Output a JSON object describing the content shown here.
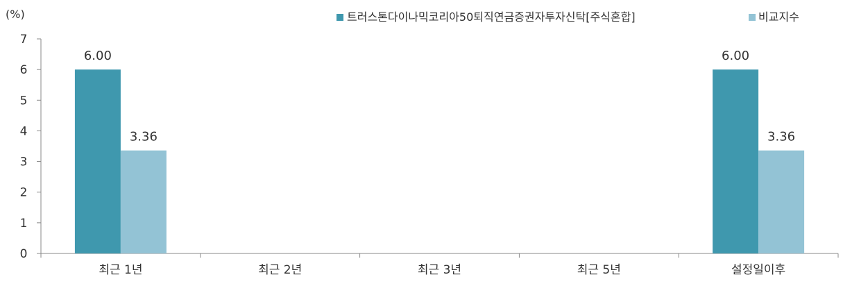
{
  "chart_data": {
    "type": "bar",
    "unit_label": "(%)",
    "categories": [
      "최근 1년",
      "최근 2년",
      "최근 3년",
      "최근 5년",
      "설정일이후"
    ],
    "series": [
      {
        "name": "트러스톤다이나믹코리아50퇴직연금증권자투자신탁[주식혼합]",
        "color": "#3f98ae",
        "values": [
          6.0,
          null,
          null,
          null,
          6.0
        ],
        "labels": [
          "6.00",
          "",
          "",
          "",
          "6.00"
        ]
      },
      {
        "name": "비교지수",
        "color": "#93c3d5",
        "values": [
          3.36,
          null,
          null,
          null,
          3.36
        ],
        "labels": [
          "3.36",
          "",
          "",
          "",
          "3.36"
        ]
      }
    ],
    "yticks": [
      "0",
      "1",
      "2",
      "3",
      "4",
      "5",
      "6",
      "7"
    ],
    "ylim": [
      0,
      7
    ],
    "grid": false,
    "legend_position": "top-right"
  }
}
